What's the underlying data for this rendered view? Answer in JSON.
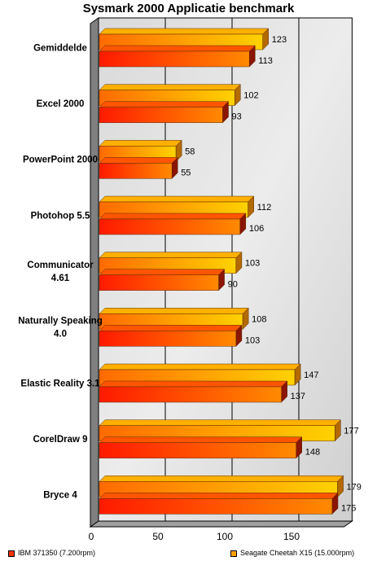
{
  "chart_data": {
    "type": "bar",
    "orientation": "horizontal",
    "title": "Sysmark 2000 Applicatie benchmark",
    "categories": [
      [
        "Gemiddelde"
      ],
      [
        "Excel 2000"
      ],
      [
        "PowerPoint 2000"
      ],
      [
        "Photohop 5.5"
      ],
      [
        "Communicator",
        "4.61"
      ],
      [
        "Naturally Speaking",
        "4.0"
      ],
      [
        "Elastic Reality 3.1"
      ],
      [
        "CorelDraw 9"
      ],
      [
        "Bryce 4"
      ]
    ],
    "series": [
      {
        "name": "Seagate Cheetah X15 (15.000rpm)",
        "color": "#FFC000",
        "values": [
          123,
          102,
          58,
          112,
          103,
          108,
          147,
          177,
          179
        ]
      },
      {
        "name": "IBM 371350 (7.200rpm)",
        "color": "#FF3300",
        "values": [
          113,
          93,
          55,
          106,
          90,
          103,
          137,
          148,
          175
        ]
      }
    ],
    "x_ticks": [
      0,
      50,
      100,
      150
    ],
    "xlim": [
      0,
      185
    ],
    "grid": true,
    "legend_position": "bottom",
    "legend": [
      {
        "label": "IBM 371350 (7.200rpm)",
        "color": "#FF3300"
      },
      {
        "label": "Seagate Cheetah X15 (15.000rpm)",
        "color": "#FFA000"
      }
    ]
  }
}
